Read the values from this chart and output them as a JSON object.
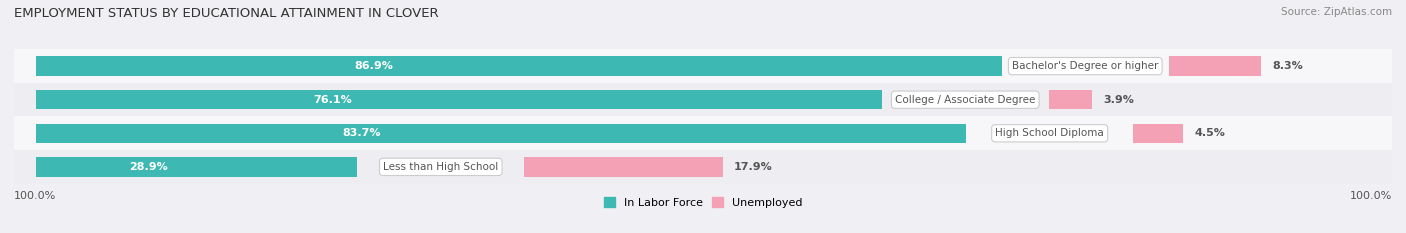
{
  "title": "EMPLOYMENT STATUS BY EDUCATIONAL ATTAINMENT IN CLOVER",
  "source": "Source: ZipAtlas.com",
  "categories": [
    "Less than High School",
    "High School Diploma",
    "College / Associate Degree",
    "Bachelor's Degree or higher"
  ],
  "labor_force_pct": [
    28.9,
    83.7,
    76.1,
    86.9
  ],
  "unemployed_pct": [
    17.9,
    4.5,
    3.9,
    8.3
  ],
  "labor_force_color": "#3db8b2",
  "unemployed_color": "#f4a0b5",
  "row_bg_even": "#ededf2",
  "row_bg_odd": "#f7f7fa",
  "text_color_white": "#ffffff",
  "text_color_dark": "#555555",
  "legend_labor": "In Labor Force",
  "legend_unemployed": "Unemployed",
  "total_width": 100.0,
  "left_label": "100.0%",
  "right_label": "100.0%",
  "figsize": [
    14.06,
    2.33
  ],
  "dpi": 100
}
